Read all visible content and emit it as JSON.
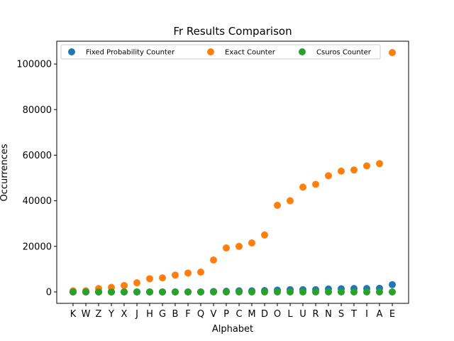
{
  "chart_data": {
    "type": "scatter",
    "title": "Fr Results Comparison",
    "xlabel": "Alphabet",
    "ylabel": "Occurrences",
    "categories": [
      "K",
      "W",
      "Z",
      "Y",
      "X",
      "J",
      "H",
      "G",
      "B",
      "F",
      "Q",
      "V",
      "P",
      "C",
      "M",
      "D",
      "O",
      "L",
      "U",
      "R",
      "N",
      "S",
      "T",
      "I",
      "A",
      "E"
    ],
    "ylim": [
      -5000,
      110000
    ],
    "yticks": [
      0,
      20000,
      40000,
      60000,
      80000,
      100000
    ],
    "ytick_labels": [
      "0",
      "20000",
      "40000",
      "60000",
      "80000",
      "100000"
    ],
    "grid": false,
    "legend_position": "top",
    "series": [
      {
        "name": "Fixed Probability Counter",
        "color": "#1f77b4",
        "values": [
          0,
          0,
          0,
          0,
          0,
          0,
          0,
          0,
          0,
          0,
          0,
          200,
          300,
          500,
          500,
          600,
          800,
          1000,
          1000,
          1000,
          1300,
          1400,
          1500,
          1500,
          1600,
          3200
        ]
      },
      {
        "name": "Exact Counter",
        "color": "#ff7f0e",
        "values": [
          500,
          500,
          1500,
          2000,
          2800,
          4000,
          5800,
          6200,
          7400,
          8300,
          8700,
          14000,
          19300,
          20000,
          21500,
          25000,
          38000,
          40000,
          46000,
          47200,
          51000,
          53000,
          53500,
          55300,
          56300,
          105000
        ]
      },
      {
        "name": "Csuros Counter",
        "color": "#2ca02c",
        "values": [
          0,
          0,
          0,
          0,
          0,
          0,
          0,
          0,
          0,
          0,
          0,
          0,
          0,
          0,
          0,
          0,
          0,
          0,
          0,
          0,
          0,
          0,
          0,
          0,
          0,
          0
        ]
      }
    ]
  }
}
